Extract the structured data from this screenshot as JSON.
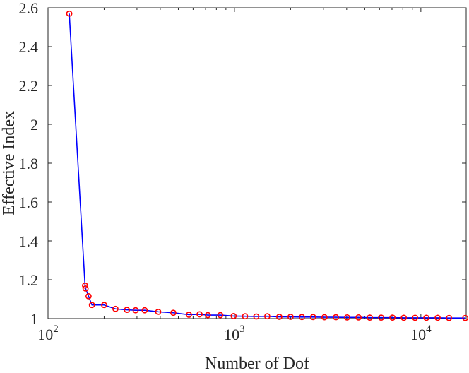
{
  "chart_data": {
    "type": "line",
    "xlabel": "Number of Dof",
    "ylabel": "Effective Index",
    "xscale": "log",
    "xlim": [
      100,
      17500
    ],
    "ylim": [
      1,
      2.6
    ],
    "grid": false,
    "legend": "none",
    "x_ticks": [
      {
        "base": "10",
        "exp": "2",
        "value": 100
      },
      {
        "base": "10",
        "exp": "3",
        "value": 1000
      },
      {
        "base": "10",
        "exp": "4",
        "value": 10000
      }
    ],
    "y_ticks": [
      {
        "label": "1",
        "value": 1
      },
      {
        "label": "1.2",
        "value": 1.2
      },
      {
        "label": "1.4",
        "value": 1.4
      },
      {
        "label": "1.6",
        "value": 1.6
      },
      {
        "label": "1.8",
        "value": 1.8
      },
      {
        "label": "2",
        "value": 2
      },
      {
        "label": "2.2",
        "value": 2.2
      },
      {
        "label": "2.4",
        "value": 2.4
      },
      {
        "label": "2.6",
        "value": 2.6
      }
    ],
    "series": [
      {
        "line_color": "#0000ff",
        "marker_color": "#ff0000",
        "marker": "circle",
        "points": [
          [
            130,
            2.57
          ],
          [
            158,
            1.17
          ],
          [
            159,
            1.155
          ],
          [
            165,
            1.115
          ],
          [
            172,
            1.07
          ],
          [
            200,
            1.07
          ],
          [
            230,
            1.05
          ],
          [
            265,
            1.045
          ],
          [
            295,
            1.043
          ],
          [
            330,
            1.043
          ],
          [
            390,
            1.035
          ],
          [
            470,
            1.03
          ],
          [
            570,
            1.02
          ],
          [
            650,
            1.022
          ],
          [
            720,
            1.018
          ],
          [
            840,
            1.018
          ],
          [
            990,
            1.013
          ],
          [
            1140,
            1.012
          ],
          [
            1310,
            1.011
          ],
          [
            1500,
            1.012
          ],
          [
            1740,
            1.009
          ],
          [
            2000,
            1.009
          ],
          [
            2300,
            1.008
          ],
          [
            2640,
            1.008
          ],
          [
            3040,
            1.007
          ],
          [
            3500,
            1.007
          ],
          [
            4020,
            1.006
          ],
          [
            4630,
            1.006
          ],
          [
            5320,
            1.005
          ],
          [
            6120,
            1.005
          ],
          [
            7040,
            1.005
          ],
          [
            8100,
            1.004
          ],
          [
            9310,
            1.004
          ],
          [
            10700,
            1.004
          ],
          [
            12300,
            1.004
          ],
          [
            14150,
            1.003
          ],
          [
            17300,
            1.003
          ]
        ]
      }
    ]
  }
}
